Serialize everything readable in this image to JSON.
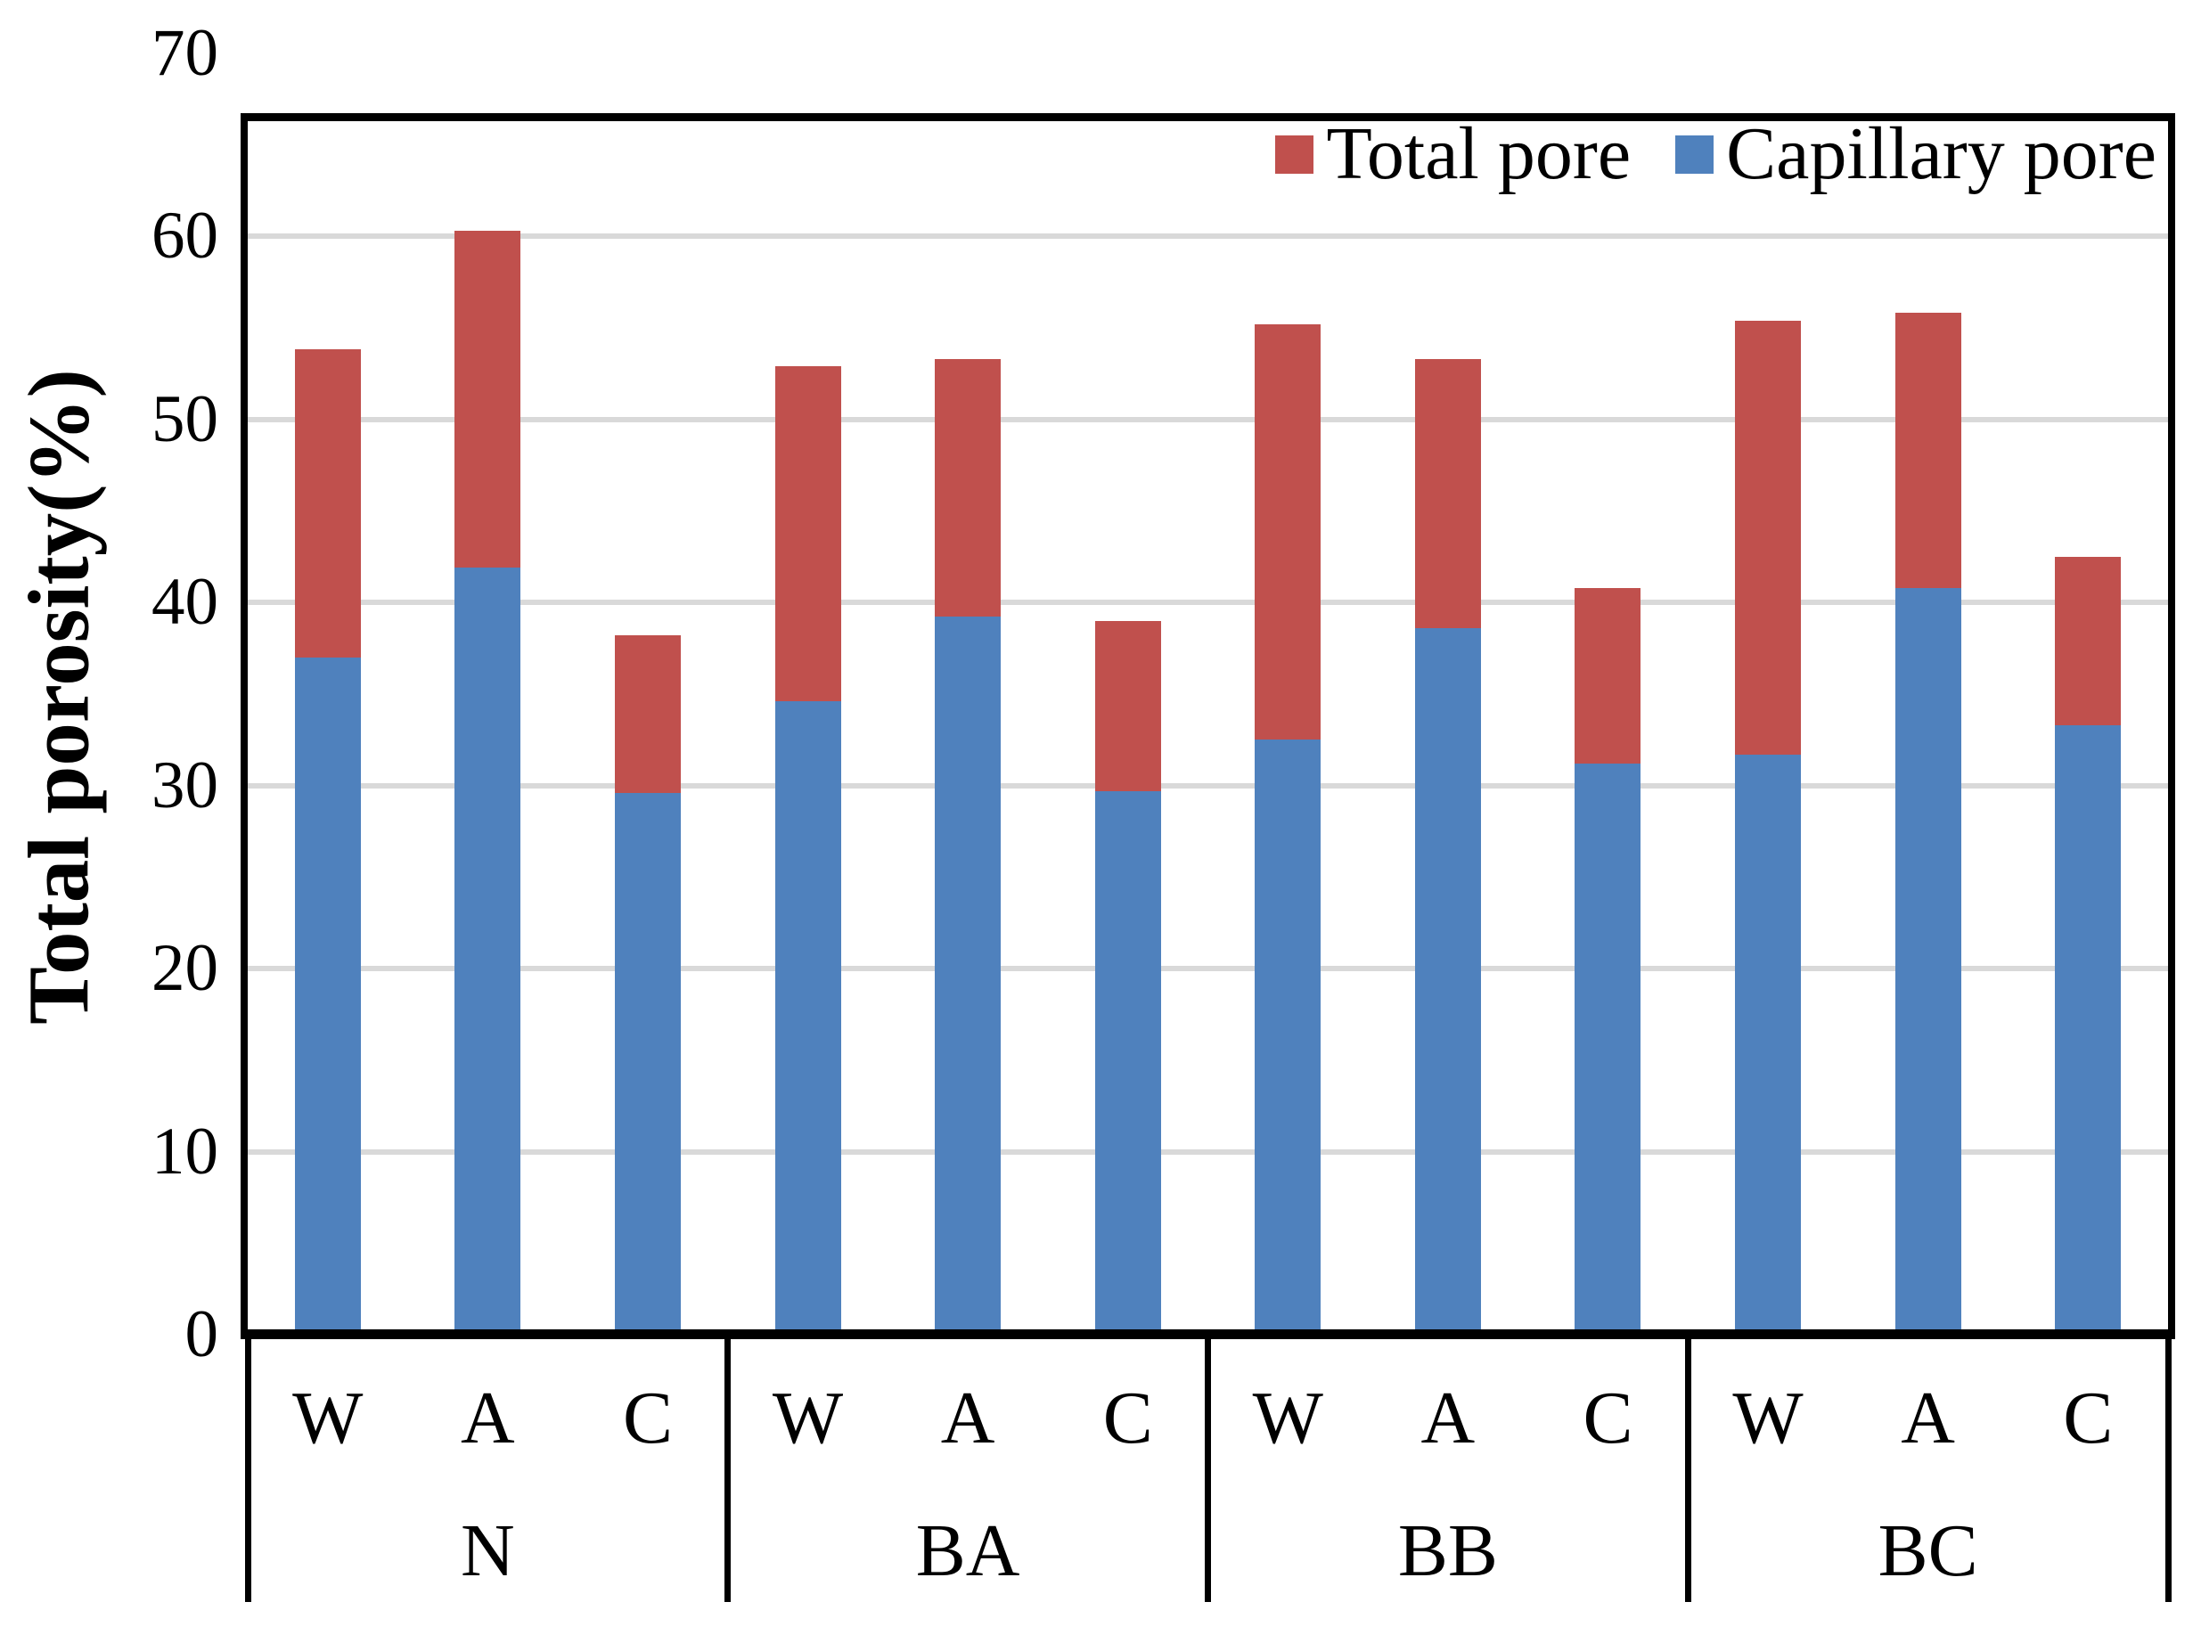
{
  "chart_data": {
    "type": "bar",
    "subtype": "stacked-column",
    "title": "",
    "xlabel": "",
    "ylabel": "Total porosity(%)",
    "ylim": [
      0,
      70
    ],
    "ytick_interval": 10,
    "yticks": [
      "0",
      "10",
      "20",
      "30",
      "40",
      "50",
      "60",
      "70"
    ],
    "grid": true,
    "legend_position": "top-right-inside",
    "groups": [
      "N",
      "BA",
      "BB",
      "BC"
    ],
    "categories_per_group": [
      "W",
      "A",
      "C"
    ],
    "series": [
      {
        "label": "Total pore",
        "color": "#C0504D",
        "role": "total-height-of-stack"
      },
      {
        "label": "Capillary pore",
        "color": "#4F81BD",
        "role": "bottom-segment"
      }
    ],
    "note": "Red segment drawn from capillary_pore up to total_pore; blue segment from 0 to capillary_pore.",
    "bars": [
      {
        "group": "N",
        "condition": "W",
        "capillary_pore": 37.0,
        "total_pore": 53.8
      },
      {
        "group": "N",
        "condition": "A",
        "capillary_pore": 41.9,
        "total_pore": 60.3
      },
      {
        "group": "N",
        "condition": "C",
        "capillary_pore": 29.6,
        "total_pore": 38.2
      },
      {
        "group": "BA",
        "condition": "W",
        "capillary_pore": 34.6,
        "total_pore": 52.9
      },
      {
        "group": "BA",
        "condition": "A",
        "capillary_pore": 39.2,
        "total_pore": 53.3
      },
      {
        "group": "BA",
        "condition": "C",
        "capillary_pore": 29.7,
        "total_pore": 39.0
      },
      {
        "group": "BB",
        "condition": "W",
        "capillary_pore": 32.5,
        "total_pore": 55.2
      },
      {
        "group": "BB",
        "condition": "A",
        "capillary_pore": 38.6,
        "total_pore": 53.3
      },
      {
        "group": "BB",
        "condition": "C",
        "capillary_pore": 31.2,
        "total_pore": 40.8
      },
      {
        "group": "BC",
        "condition": "W",
        "capillary_pore": 31.7,
        "total_pore": 55.4
      },
      {
        "group": "BC",
        "condition": "A",
        "capillary_pore": 40.8,
        "total_pore": 55.8
      },
      {
        "group": "BC",
        "condition": "C",
        "capillary_pore": 33.3,
        "total_pore": 42.5
      }
    ],
    "colors": {
      "total_pore": "#C0504D",
      "capillary_pore": "#4F81BD",
      "gridline": "#D9D9D9",
      "axis": "#000000",
      "background": "#FFFFFF"
    }
  }
}
